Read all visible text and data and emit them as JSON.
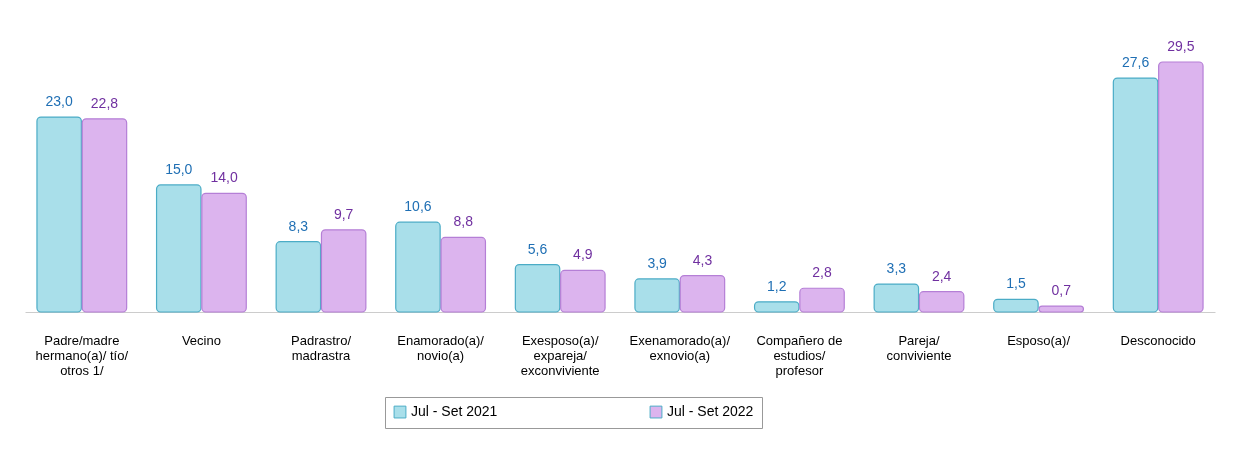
{
  "chart_data": {
    "type": "bar",
    "categories": [
      "Padre/madre hermano(a)/ tío/ otros 1/",
      "Vecino",
      "Padrastro/ madrastra",
      "Enamorado(a)/ novio(a)",
      "Exesposo(a)/ expareja/ exconviviente",
      "Exenamorado(a)/ exnovio(a)",
      "Compañero de estudios/ profesor",
      "Pareja/ conviviente",
      "Esposo(a)/",
      "Desconocido"
    ],
    "series": [
      {
        "name": "Jul - Set 2021",
        "color": "#a9dfea",
        "values": [
          23.0,
          15.0,
          8.3,
          10.6,
          5.6,
          3.9,
          1.2,
          3.3,
          1.5,
          27.6
        ],
        "value_labels": [
          "23,0",
          "15,0",
          "8,3",
          "10,6",
          "5,6",
          "3,9",
          "1,2",
          "3,3",
          "1,5",
          "27,6"
        ]
      },
      {
        "name": "Jul - Set 2022",
        "color": "#dcb4ee",
        "values": [
          22.8,
          14.0,
          9.7,
          8.8,
          4.9,
          4.3,
          2.8,
          2.4,
          0.7,
          29.5
        ],
        "value_labels": [
          "22,8",
          "14,0",
          "9,7",
          "8,8",
          "4,9",
          "4,3",
          "2,8",
          "2,4",
          "0,7",
          "29,5"
        ]
      }
    ],
    "legend": "bottom"
  }
}
